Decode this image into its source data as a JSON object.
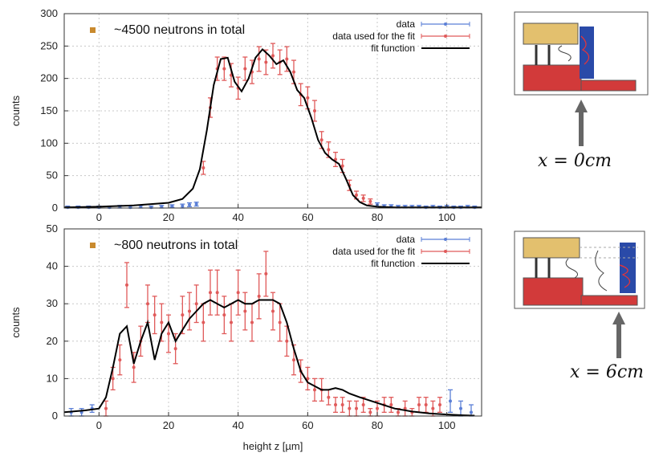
{
  "colors": {
    "data": "#5b7fd6",
    "fit_data": "#e05a5a",
    "fit_line": "#000000",
    "marker": "#c98a2e",
    "beam_top": "#e3c06e",
    "beam_bottom": "#d23a3a",
    "detector": "#2a4aa8"
  },
  "chart_data": [
    {
      "type": "scatter",
      "annotation": "~4500 neutrons in total",
      "xlabel": "",
      "ylabel": "counts",
      "xlim": [
        -10,
        110
      ],
      "ylim": [
        0,
        300
      ],
      "xticks": [
        0,
        20,
        40,
        60,
        80,
        100
      ],
      "yticks": [
        0,
        50,
        100,
        150,
        200,
        250,
        300
      ],
      "grid": true,
      "legend": "top-right",
      "legend_entries": [
        "data",
        "data used for the fit",
        "fit function"
      ],
      "series": [
        {
          "name": "data",
          "style": "points",
          "x": [
            -9,
            -6,
            -3,
            0,
            3,
            6,
            9,
            12,
            15,
            18,
            21,
            24,
            26,
            28,
            80,
            82,
            84,
            86,
            88,
            90,
            92,
            94,
            96,
            98,
            100,
            102,
            104,
            106,
            108
          ],
          "y": [
            1,
            1,
            1,
            1,
            1,
            2,
            1,
            2,
            1,
            2,
            3,
            3,
            5,
            6,
            5,
            3,
            3,
            2,
            2,
            2,
            2,
            1,
            2,
            1,
            2,
            1,
            1,
            2,
            1
          ],
          "err": [
            2,
            2,
            2,
            2,
            2,
            2,
            2,
            2,
            2,
            2,
            2,
            3,
            3,
            3,
            3,
            2,
            2,
            2,
            2,
            2,
            2,
            2,
            2,
            2,
            2,
            2,
            2,
            2,
            2
          ]
        },
        {
          "name": "data used for the fit",
          "style": "points",
          "x": [
            30,
            32,
            34,
            36,
            38,
            40,
            42,
            44,
            46,
            48,
            50,
            52,
            54,
            56,
            58,
            60,
            62,
            64,
            66,
            68,
            70,
            72,
            74,
            76,
            78
          ],
          "y": [
            62,
            155,
            215,
            215,
            205,
            185,
            215,
            210,
            230,
            225,
            235,
            225,
            230,
            210,
            175,
            170,
            150,
            105,
            90,
            75,
            65,
            35,
            20,
            15,
            10
          ],
          "err": [
            10,
            15,
            18,
            18,
            18,
            17,
            18,
            18,
            19,
            19,
            19,
            19,
            19,
            18,
            17,
            17,
            16,
            13,
            12,
            11,
            10,
            8,
            6,
            5,
            4
          ]
        },
        {
          "name": "fit function",
          "style": "line",
          "x": [
            -10,
            0,
            10,
            20,
            24,
            27,
            29,
            31,
            33,
            35,
            37,
            39,
            41,
            43,
            45,
            47,
            49,
            51,
            53,
            55,
            57,
            59,
            61,
            63,
            65,
            67,
            69,
            71,
            73,
            75,
            77,
            80,
            85,
            90,
            100,
            110
          ],
          "y": [
            1,
            2,
            4,
            8,
            14,
            30,
            60,
            120,
            190,
            230,
            232,
            195,
            180,
            200,
            232,
            245,
            235,
            222,
            228,
            210,
            182,
            170,
            140,
            105,
            85,
            75,
            68,
            45,
            20,
            9,
            4,
            2,
            1,
            1,
            1,
            1
          ]
        }
      ]
    },
    {
      "type": "scatter",
      "annotation": "~800 neutrons in total",
      "xlabel": "height z [µm]",
      "ylabel": "counts",
      "xlim": [
        -10,
        110
      ],
      "ylim": [
        0,
        50
      ],
      "xticks": [
        0,
        20,
        40,
        60,
        80,
        100
      ],
      "yticks": [
        0,
        10,
        20,
        30,
        40,
        50
      ],
      "grid": true,
      "legend": "top-right",
      "legend_entries": [
        "data",
        "data used for the fit",
        "fit function"
      ],
      "series": [
        {
          "name": "data",
          "style": "points",
          "x": [
            -8,
            -5,
            -2,
            101,
            104,
            107
          ],
          "y": [
            1,
            1,
            2,
            4,
            2,
            1
          ],
          "err": [
            1,
            1,
            1,
            3,
            2,
            2
          ]
        },
        {
          "name": "data used for the fit",
          "style": "points",
          "x": [
            2,
            4,
            6,
            8,
            10,
            12,
            14,
            16,
            18,
            20,
            22,
            24,
            26,
            28,
            30,
            32,
            34,
            36,
            38,
            40,
            42,
            44,
            46,
            48,
            50,
            52,
            54,
            56,
            58,
            60,
            62,
            64,
            66,
            68,
            70,
            72,
            74,
            76,
            78,
            80,
            82,
            84,
            86,
            88,
            90,
            92,
            94,
            96,
            98
          ],
          "y": [
            2,
            10,
            15,
            35,
            13,
            20,
            30,
            27,
            25,
            22,
            18,
            27,
            28,
            30,
            25,
            33,
            33,
            27,
            25,
            33,
            28,
            25,
            32,
            38,
            28,
            25,
            20,
            15,
            12,
            10,
            7,
            7,
            5,
            3,
            3,
            2,
            2,
            3,
            1,
            2,
            3,
            3,
            1,
            2,
            1,
            3,
            3,
            2,
            3
          ],
          "err": [
            2,
            3,
            4,
            6,
            4,
            4,
            5,
            5,
            5,
            5,
            4,
            5,
            5,
            5,
            5,
            6,
            6,
            5,
            5,
            6,
            5,
            5,
            6,
            6,
            5,
            5,
            4,
            4,
            3,
            3,
            3,
            3,
            2,
            2,
            2,
            2,
            2,
            2,
            1,
            2,
            2,
            2,
            1,
            2,
            1,
            2,
            2,
            2,
            2
          ]
        },
        {
          "name": "fit function",
          "style": "line",
          "x": [
            -10,
            -4,
            0,
            2,
            4,
            6,
            8,
            10,
            12,
            14,
            16,
            18,
            20,
            22,
            24,
            26,
            28,
            30,
            32,
            34,
            36,
            38,
            40,
            42,
            44,
            46,
            48,
            50,
            52,
            54,
            56,
            58,
            60,
            62,
            64,
            66,
            68,
            70,
            72,
            75,
            80,
            85,
            90,
            95,
            100,
            105,
            108
          ],
          "y": [
            1,
            1.5,
            2,
            5,
            13,
            22,
            24,
            14,
            20,
            25,
            15,
            22,
            25,
            20,
            23,
            26,
            28,
            30,
            31,
            30,
            29,
            30,
            31,
            30,
            30,
            31,
            31,
            31,
            30,
            25,
            18,
            12,
            9,
            8,
            7,
            7,
            7.5,
            7,
            6,
            5,
            3.5,
            2,
            1.2,
            0.7,
            0.4,
            0.2,
            0.1
          ]
        }
      ]
    }
  ],
  "insets": [
    {
      "label_math": "x = 0cm"
    },
    {
      "label_math": "x = 6cm"
    }
  ]
}
